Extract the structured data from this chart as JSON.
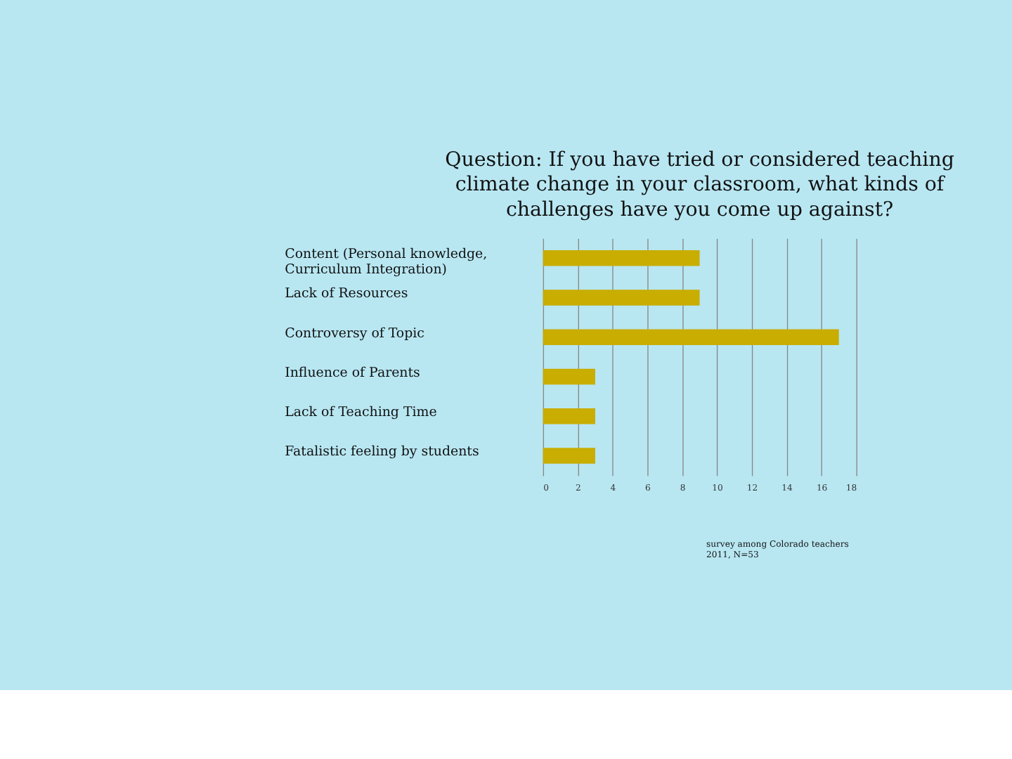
{
  "chart_data": {
    "type": "bar",
    "orientation": "horizontal",
    "title": "Question: If you have tried or considered teaching climate change in your classroom, what kinds of challenges have you come up against?",
    "categories": [
      "Content (Personal knowledge, Curriculum Integration)",
      "Lack of Resources",
      "Controversy of Topic",
      "Influence of Parents",
      "Lack of Teaching Time",
      "Fatalistic feeling by students"
    ],
    "values": [
      9,
      9,
      17,
      3,
      3,
      3
    ],
    "color": "#c9ad00",
    "xlim": [
      0,
      18
    ],
    "xticks": [
      0,
      2,
      4,
      6,
      8,
      10,
      12,
      14,
      16,
      18
    ],
    "grid": "x",
    "annotations": [
      "survey among Colorado teachers 2011, N=53"
    ]
  }
}
